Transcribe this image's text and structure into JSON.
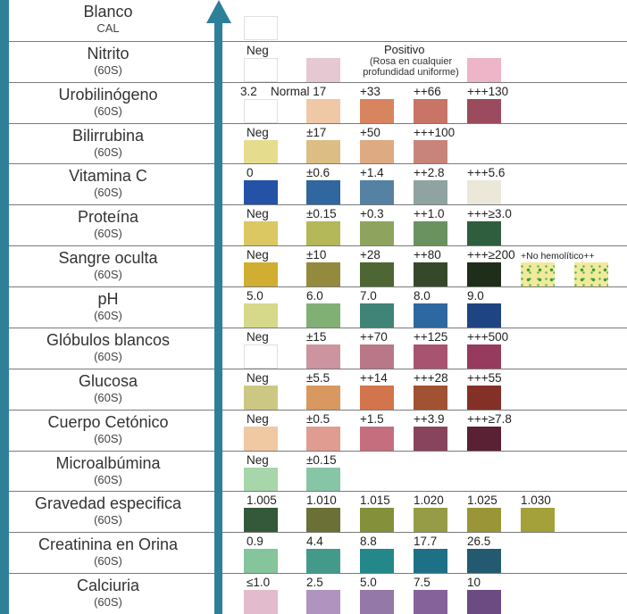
{
  "rows": [
    {
      "name": "Blanco",
      "sub": "CAL",
      "cells": [
        {
          "label": "",
          "color": "#ffffff"
        }
      ]
    },
    {
      "name": "Nitrito",
      "sub": "(60S)",
      "cells": [
        {
          "label": "Neg",
          "color": "#ffffff"
        },
        {
          "label": "",
          "color": "#e6c8d2"
        },
        {
          "label": "",
          "color": "#ffffff",
          "skip": true
        },
        {
          "label": "",
          "color": "#ffffff",
          "skip": true
        },
        {
          "label": "",
          "color": "#eeb4c8"
        }
      ],
      "positive_title": "Positivo",
      "positive_note_1": "(Rosa en cualquier",
      "positive_note_2": "profundidad uniforme)"
    },
    {
      "name": "Urobilinógeno",
      "sub": "(60S)",
      "cells": [
        {
          "label": "3.2",
          "color": "#ffffff"
        },
        {
          "label": "Normal 17",
          "color": "#f0c8a6"
        },
        {
          "label": "+33",
          "color": "#d8845e"
        },
        {
          "label": "++66",
          "color": "#c87466"
        },
        {
          "label": "+++130",
          "color": "#9c4a5e"
        }
      ]
    },
    {
      "name": "Bilirrubina",
      "sub": "(60S)",
      "cells": [
        {
          "label": "Neg",
          "color": "#e6dc8e"
        },
        {
          "label": "±17",
          "color": "#dcbe84"
        },
        {
          "label": "+50",
          "color": "#deaa82"
        },
        {
          "label": "+++100",
          "color": "#c8847a"
        }
      ]
    },
    {
      "name": "Vitamina C",
      "sub": "(60S)",
      "cells": [
        {
          "label": "0",
          "color": "#2352a6"
        },
        {
          "label": "±0.6",
          "color": "#30679e"
        },
        {
          "label": "+1.4",
          "color": "#5582a2"
        },
        {
          "label": "++2.8",
          "color": "#8fa4a0"
        },
        {
          "label": "+++5.6",
          "color": "#ebe8da"
        }
      ]
    },
    {
      "name": "Proteína",
      "sub": "(60S)",
      "cells": [
        {
          "label": "Neg",
          "color": "#dcc862"
        },
        {
          "label": "±0.15",
          "color": "#b4b858"
        },
        {
          "label": "+0.3",
          "color": "#8ea45e"
        },
        {
          "label": "++1.0",
          "color": "#6a925e"
        },
        {
          "label": "+++≥3.0",
          "color": "#2f5e3e"
        }
      ]
    },
    {
      "name": "Sangre oculta",
      "sub": "(60S)",
      "cells": [
        {
          "label": "Neg",
          "color": "#cfae32"
        },
        {
          "label": "±10",
          "color": "#948a3e"
        },
        {
          "label": "+28",
          "color": "#4e6634"
        },
        {
          "label": "++80",
          "color": "#36482a"
        },
        {
          "label": "+++≥200",
          "color": "#1e2e1a"
        }
      ],
      "extra_label": "+No hemolítico++",
      "extra_color": "#f1ea9a"
    },
    {
      "name": "pH",
      "sub": "(60S)",
      "cells": [
        {
          "label": "5.0",
          "color": "#d6d88a"
        },
        {
          "label": "6.0",
          "color": "#80b074"
        },
        {
          "label": "7.0",
          "color": "#3f8476"
        },
        {
          "label": "8.0",
          "color": "#2e68a0"
        },
        {
          "label": "9.0",
          "color": "#1f4482"
        }
      ]
    },
    {
      "name": "Glóbulos blancos",
      "sub": "(60S)",
      "cells": [
        {
          "label": "Neg",
          "color": "#ffffff"
        },
        {
          "label": "±15",
          "color": "#cc949e"
        },
        {
          "label": "++70",
          "color": "#b87888"
        },
        {
          "label": "++125",
          "color": "#a85470"
        },
        {
          "label": "+++500",
          "color": "#963a5e"
        }
      ]
    },
    {
      "name": "Glucosa",
      "sub": "(60S)",
      "cells": [
        {
          "label": "Neg",
          "color": "#ccc884"
        },
        {
          "label": "±5.5",
          "color": "#d89860"
        },
        {
          "label": "++14",
          "color": "#d2744c"
        },
        {
          "label": "+++28",
          "color": "#a05232"
        },
        {
          "label": "+++55",
          "color": "#843026"
        }
      ]
    },
    {
      "name": "Cuerpo Cetónico",
      "sub": "(60S)",
      "cells": [
        {
          "label": "Neg",
          "color": "#f0c8a2"
        },
        {
          "label": "±0.5",
          "color": "#e09c90"
        },
        {
          "label": "+1.5",
          "color": "#c46e7e"
        },
        {
          "label": "++3.9",
          "color": "#88445c"
        },
        {
          "label": "+++≥7.8",
          "color": "#5a2034"
        }
      ]
    },
    {
      "name": "Microalbúmina",
      "sub": "(60S)",
      "cells": [
        {
          "label": "Neg",
          "color": "#a6d6aa"
        },
        {
          "label": "±0.15",
          "color": "#86c6a6"
        }
      ]
    },
    {
      "name": "Gravedad especifica",
      "sub": "(60S)",
      "cells": [
        {
          "label": "1.005",
          "color": "#34583a"
        },
        {
          "label": "1.010",
          "color": "#6a7036"
        },
        {
          "label": "1.015",
          "color": "#84903a"
        },
        {
          "label": "1.020",
          "color": "#969c46"
        },
        {
          "label": "1.025",
          "color": "#9a9638"
        },
        {
          "label": "1.030",
          "color": "#a4a03a"
        }
      ]
    },
    {
      "name": "Creatinina en Orina",
      "sub": "(60S)",
      "cells": [
        {
          "label": "0.9",
          "color": "#86c49c"
        },
        {
          "label": "4.4",
          "color": "#449a8a"
        },
        {
          "label": "8.8",
          "color": "#24888a"
        },
        {
          "label": "17.7",
          "color": "#1e7086"
        },
        {
          "label": "26.5",
          "color": "#245a70"
        }
      ]
    },
    {
      "name": "Calciuria",
      "sub": "(60S)",
      "cells": [
        {
          "label": "≤1.0",
          "color": "#e2bccc"
        },
        {
          "label": "2.5",
          "color": "#ae94be"
        },
        {
          "label": "5.0",
          "color": "#9478a8"
        },
        {
          "label": "7.5",
          "color": "#86629a"
        },
        {
          "label": "10",
          "color": "#6c4a82"
        }
      ]
    }
  ],
  "colors": {
    "accent": "#2e7f98",
    "divider": "#7a7a7a"
  }
}
